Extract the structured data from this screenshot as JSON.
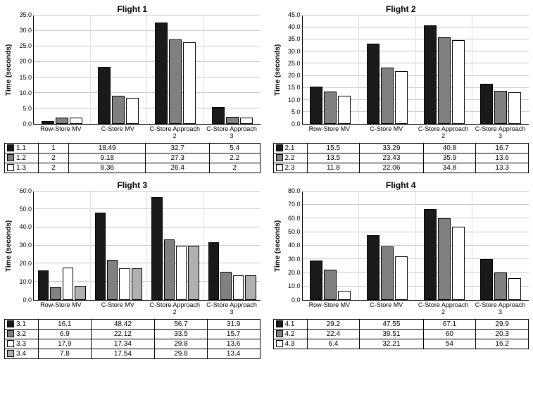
{
  "ylabel": "Time (seconds)",
  "colors": {
    "s1": "#1a1a1a",
    "s2": "#808080",
    "s3": "#ffffff",
    "s4": "#b0b0b0",
    "bar_border": "#000000",
    "grid": "#c8c8c8",
    "bg": "#ffffff"
  },
  "categories": [
    "Row-Store MV",
    "C-Store MV",
    "C-Store Approach 2",
    "C-Store Approach 3"
  ],
  "panels": [
    {
      "key": "f1",
      "title": "Flight 1",
      "ymax": 35.0,
      "ystep": 5.0,
      "series": [
        {
          "label": "1.1",
          "color": "s1",
          "values": [
            1.0,
            18.49,
            32.7,
            5.4
          ]
        },
        {
          "label": "1.2",
          "color": "s2",
          "values": [
            2.0,
            9.18,
            27.3,
            2.2
          ]
        },
        {
          "label": "1.3",
          "color": "s3",
          "values": [
            2.0,
            8.36,
            26.4,
            2.0
          ]
        }
      ]
    },
    {
      "key": "f2",
      "title": "Flight 2",
      "ymax": 45.0,
      "ystep": 5.0,
      "series": [
        {
          "label": "2.1",
          "color": "s1",
          "values": [
            15.5,
            33.29,
            40.8,
            16.7
          ]
        },
        {
          "label": "2.2",
          "color": "s2",
          "values": [
            13.5,
            23.43,
            35.9,
            13.6
          ]
        },
        {
          "label": "2.3",
          "color": "s3",
          "values": [
            11.8,
            22.06,
            34.8,
            13.3
          ]
        }
      ]
    },
    {
      "key": "f3",
      "title": "Flight 3",
      "ymax": 60.0,
      "ystep": 10.0,
      "series": [
        {
          "label": "3.1",
          "color": "s1",
          "values": [
            16.1,
            48.42,
            56.7,
            31.9
          ]
        },
        {
          "label": "3.2",
          "color": "s2",
          "values": [
            6.9,
            22.12,
            33.5,
            15.7
          ]
        },
        {
          "label": "3.3",
          "color": "s3",
          "values": [
            17.9,
            17.34,
            29.8,
            13.6
          ]
        },
        {
          "label": "3.4",
          "color": "s4",
          "values": [
            7.8,
            17.54,
            29.8,
            13.4
          ]
        }
      ]
    },
    {
      "key": "f4",
      "title": "Flight 4",
      "ymax": 80.0,
      "ystep": 10.0,
      "series": [
        {
          "label": "4.1",
          "color": "s1",
          "values": [
            29.2,
            47.55,
            67.1,
            29.9
          ]
        },
        {
          "label": "4.2",
          "color": "s2",
          "values": [
            22.4,
            39.51,
            60.0,
            20.3
          ]
        },
        {
          "label": "4.3",
          "color": "s3",
          "values": [
            6.4,
            32.21,
            54.0,
            16.2
          ]
        }
      ]
    }
  ]
}
